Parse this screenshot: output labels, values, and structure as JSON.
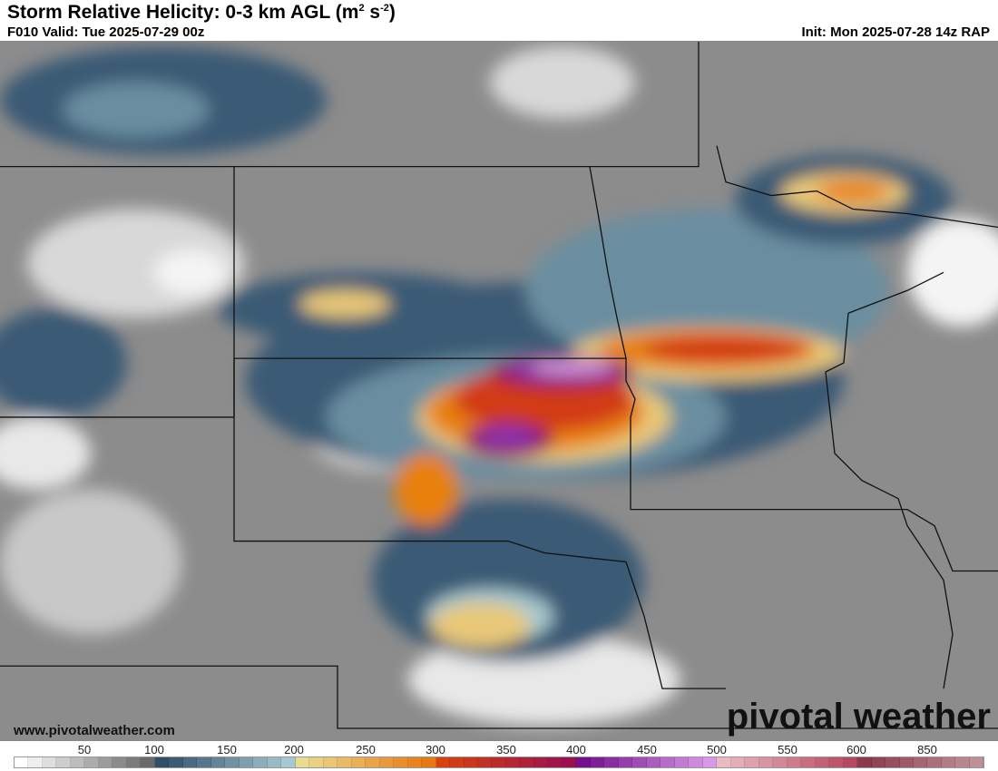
{
  "header": {
    "title": "Storm Relative Helicity: 0-3 km AGL (m",
    "title_sup1": "2",
    "title_mid": " s",
    "title_sup2": "-2",
    "title_end": ")",
    "valid": "F010 Valid: Tue 2025-07-29 00z",
    "init": "Init: Mon 2025-07-28 14z RAP"
  },
  "footer": {
    "url": "www.pivotalweather.com",
    "logo": "pivotal weather"
  },
  "colorbar": {
    "unit": "m2 s-2",
    "labels": [
      "50",
      "100",
      "150",
      "200",
      "250",
      "300",
      "350",
      "400",
      "450",
      "500",
      "550",
      "600",
      "850"
    ],
    "anchor_colors": [
      "#ffffff",
      "#6a6a6a",
      "#2f4f6b",
      "#a6c8d0",
      "#eadc8e",
      "#e8780f",
      "#d8400f",
      "#9a1050",
      "#74108e",
      "#d898e8",
      "#eabac2",
      "#b84860",
      "#8a3a4a",
      "#c09098"
    ]
  },
  "map": {
    "colors": {
      "background": "#8c8c8c",
      "light": "#d8d8d8",
      "white": "#f4f4f4",
      "blue_dark": "#3b5a75",
      "blue_mid": "#6a8ea0",
      "blue_light": "#a6c8d0",
      "yellow": "#e8c878",
      "orange": "#e8800f",
      "red": "#d23a18",
      "magenta": "#9a1050",
      "purple": "#8a30a8",
      "lavender": "#d8a0e0",
      "border": "#111111",
      "county": "#555555"
    }
  }
}
